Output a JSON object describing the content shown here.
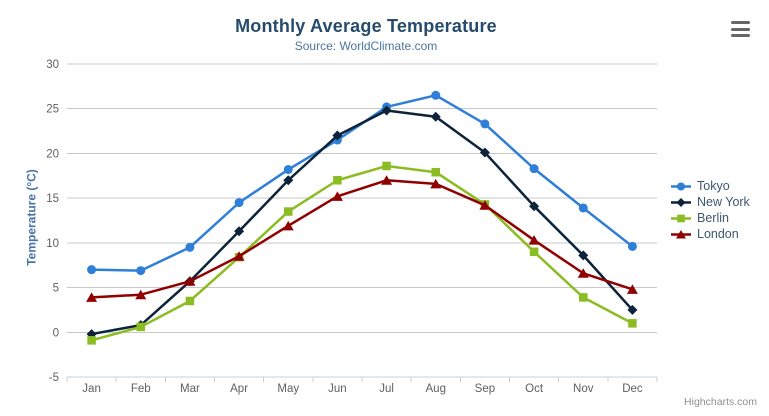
{
  "header": {
    "title": "Monthly Average Temperature",
    "subtitle": "Source: WorldClimate.com"
  },
  "toolbar": {
    "export_menu_icon": "hamburger-icon"
  },
  "credit": {
    "label": "Highcharts.com"
  },
  "chart_data": {
    "type": "line",
    "title": "Monthly Average Temperature",
    "subtitle": "Source: WorldClimate.com",
    "categories": [
      "Jan",
      "Feb",
      "Mar",
      "Apr",
      "May",
      "Jun",
      "Jul",
      "Aug",
      "Sep",
      "Oct",
      "Nov",
      "Dec"
    ],
    "series": [
      {
        "name": "Tokyo",
        "color": "#2f7ed8",
        "marker": "circle",
        "values": [
          7.0,
          6.9,
          9.5,
          14.5,
          18.2,
          21.5,
          25.2,
          26.5,
          23.3,
          18.3,
          13.9,
          9.6
        ]
      },
      {
        "name": "New York",
        "color": "#0d233a",
        "marker": "diamond",
        "values": [
          -0.2,
          0.8,
          5.7,
          11.3,
          17.0,
          22.0,
          24.8,
          24.1,
          20.1,
          14.1,
          8.6,
          2.5
        ]
      },
      {
        "name": "Berlin",
        "color": "#8bbc21",
        "marker": "square",
        "values": [
          -0.9,
          0.6,
          3.5,
          8.4,
          13.5,
          17.0,
          18.6,
          17.9,
          14.3,
          9.0,
          3.9,
          1.0
        ]
      },
      {
        "name": "London",
        "color": "#910000",
        "marker": "triangle",
        "values": [
          3.9,
          4.2,
          5.7,
          8.5,
          11.9,
          15.2,
          17.0,
          16.6,
          14.2,
          10.3,
          6.6,
          4.8
        ]
      }
    ],
    "xlabel": "",
    "ylabel": "Temperature (°C)",
    "ylim": [
      -5,
      30
    ],
    "ytick_step": 5,
    "yticks": [
      -5,
      0,
      5,
      10,
      15,
      20,
      25,
      30
    ],
    "grid": true,
    "legend_position": "right"
  },
  "colors": {
    "title_text": "#274b6d",
    "subtitle_text": "#4d759e",
    "yaxis_title_text": "#4572a7",
    "axis_label_text": "#606060",
    "legend_text": "#3e576f",
    "gridline": "#c8c8c8",
    "axis_line": "#c0d0e0",
    "credit_text": "#909090",
    "menu_icon": "#666666",
    "background": "#ffffff"
  }
}
